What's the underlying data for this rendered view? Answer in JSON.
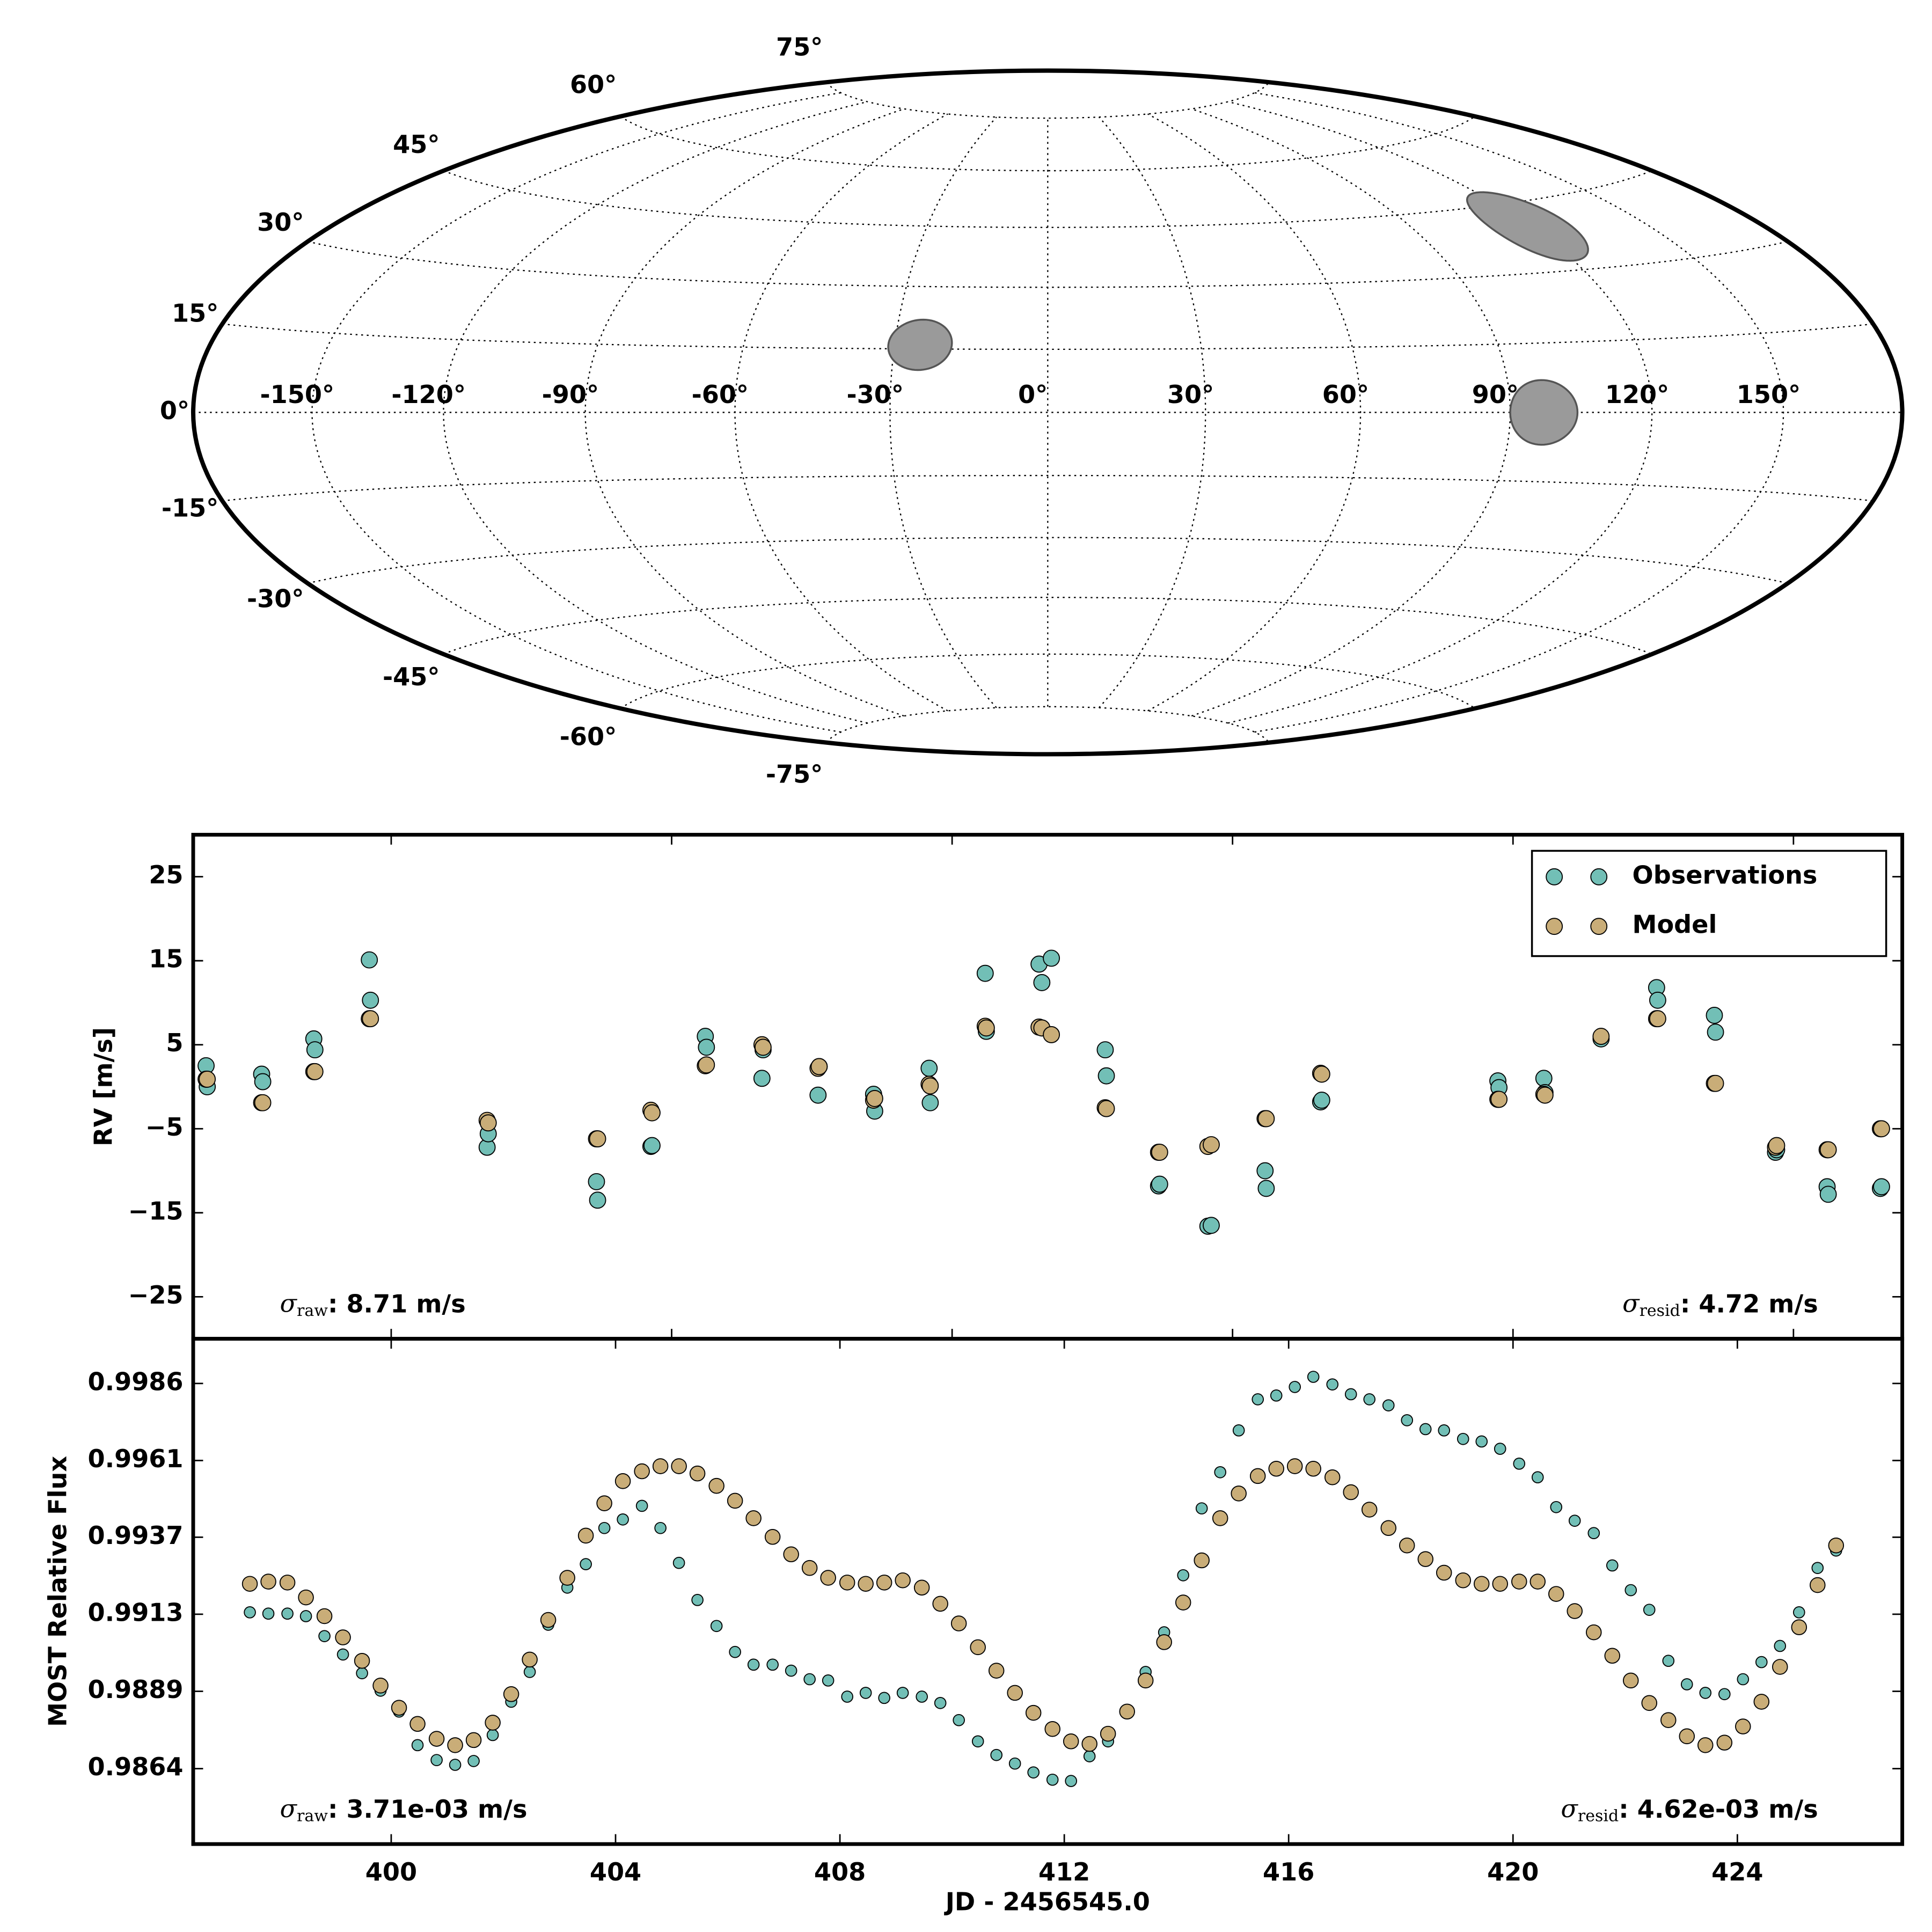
{
  "chart_data": [
    {
      "type": "map",
      "projection": "hammer",
      "lat_ticks": [
        {
          "value": -75,
          "label": "-75°"
        },
        {
          "value": -60,
          "label": "-60°"
        },
        {
          "value": -45,
          "label": "-45°"
        },
        {
          "value": -30,
          "label": "-30°"
        },
        {
          "value": -15,
          "label": "-15°"
        },
        {
          "value": 0,
          "label": "0°"
        },
        {
          "value": 15,
          "label": "15°"
        },
        {
          "value": 30,
          "label": "30°"
        },
        {
          "value": 45,
          "label": "45°"
        },
        {
          "value": 60,
          "label": "60°"
        },
        {
          "value": 75,
          "label": "75°"
        }
      ],
      "lon_ticks": [
        {
          "value": -150,
          "label": "-150°"
        },
        {
          "value": -120,
          "label": "-120°"
        },
        {
          "value": -90,
          "label": "-90°"
        },
        {
          "value": -60,
          "label": "-60°"
        },
        {
          "value": -30,
          "label": "-30°"
        },
        {
          "value": 0,
          "label": "0°"
        },
        {
          "value": 30,
          "label": "30°"
        },
        {
          "value": 60,
          "label": "60°"
        },
        {
          "value": 90,
          "label": "90°"
        },
        {
          "value": 120,
          "label": "120°"
        },
        {
          "value": 150,
          "label": "150°"
        }
      ],
      "spots": [
        {
          "lon": -25,
          "lat": 16,
          "radius": 6
        },
        {
          "lon": 97,
          "lat": 0,
          "radius": 7
        },
        {
          "lon": 120,
          "lat": 40,
          "radius": 8
        }
      ],
      "spot_color": "#9a9a9a"
    },
    {
      "type": "scatter",
      "ylabel": "RV [m/s]",
      "x": [
        396.7,
        396.72,
        397.69,
        397.71,
        398.62,
        398.64,
        399.61,
        399.63,
        401.71,
        401.73,
        403.66,
        403.68,
        404.63,
        404.65,
        405.6,
        405.62,
        406.61,
        406.63,
        407.61,
        407.63,
        408.6,
        408.62,
        409.59,
        409.61,
        410.59,
        410.61,
        411.55,
        411.6,
        411.77,
        412.73,
        412.75,
        413.68,
        413.7,
        414.56,
        414.62,
        415.58,
        415.6,
        416.57,
        416.59,
        419.73,
        419.75,
        420.55,
        420.57,
        421.57,
        422.56,
        422.58,
        423.59,
        423.61,
        424.68,
        424.7,
        425.6,
        425.62,
        426.55,
        426.57
      ],
      "series": [
        {
          "name": "Observations",
          "color": "#72bfb6",
          "values": [
            2.5,
            0.0,
            1.5,
            0.6,
            5.7,
            4.4,
            15.1,
            10.3,
            -7.2,
            -5.6,
            -11.3,
            -13.5,
            -7.1,
            -7.0,
            6.0,
            4.7,
            1.0,
            4.4,
            -1.0,
            2.4,
            -0.9,
            -2.9,
            2.2,
            -1.9,
            13.5,
            6.6,
            14.6,
            12.4,
            15.3,
            4.4,
            1.3,
            -11.8,
            -11.6,
            -16.6,
            -16.5,
            -10.0,
            -12.1,
            -1.8,
            -1.6,
            0.7,
            -0.1,
            1.0,
            -0.7,
            5.7,
            11.8,
            10.3,
            8.5,
            6.5,
            -7.8,
            -7.5,
            -11.9,
            -12.8,
            -12.1,
            -11.9
          ]
        },
        {
          "name": "Model",
          "color": "#c9ad78",
          "values": [
            0.9,
            0.9,
            -1.9,
            -1.9,
            1.8,
            1.8,
            8.1,
            8.1,
            -4.0,
            -4.3,
            -6.2,
            -6.2,
            -2.8,
            -3.1,
            2.5,
            2.6,
            5.0,
            4.7,
            2.2,
            2.4,
            -1.6,
            -1.4,
            0.3,
            0.1,
            7.2,
            7.0,
            7.1,
            7.0,
            6.2,
            -2.5,
            -2.6,
            -7.8,
            -7.8,
            -7.1,
            -6.9,
            -3.8,
            -3.8,
            1.6,
            1.5,
            -1.5,
            -1.5,
            -0.9,
            -1.0,
            6.0,
            8.1,
            8.1,
            0.4,
            0.4,
            -7.2,
            -7.0,
            -7.5,
            -7.5,
            -5.0,
            -5.0
          ]
        }
      ],
      "xlim": [
        396.47,
        426.94
      ],
      "xticks": [
        400,
        405,
        410,
        415,
        420,
        425
      ],
      "show_xticklabels": false,
      "ylim": [
        -30,
        30
      ],
      "yticks": [
        {
          "value": -25,
          "label": "−25"
        },
        {
          "value": -15,
          "label": "−15"
        },
        {
          "value": -5,
          "label": "−5"
        },
        5,
        15,
        25
      ],
      "legend": "upper right",
      "annotations": [
        {
          "symbol": "σ",
          "subscript": "raw",
          "text": ": 8.71 m/s",
          "loc": "lower left"
        },
        {
          "symbol": "σ",
          "subscript": "resid",
          "text": ": 4.72 m/s",
          "loc": "lower right"
        }
      ]
    },
    {
      "type": "scatter",
      "xlabel": "JD - 2456545.0",
      "ylabel": "MOST Relative Flux",
      "x": [
        397.48,
        397.81,
        398.15,
        398.48,
        398.81,
        399.14,
        399.48,
        399.81,
        400.14,
        400.47,
        400.81,
        401.14,
        401.47,
        401.81,
        402.14,
        402.47,
        402.8,
        403.14,
        403.47,
        403.8,
        404.13,
        404.47,
        404.8,
        405.13,
        405.46,
        405.8,
        406.13,
        406.46,
        406.8,
        407.13,
        407.46,
        407.79,
        408.13,
        408.46,
        408.79,
        409.12,
        409.46,
        409.79,
        410.12,
        410.46,
        410.79,
        411.12,
        411.45,
        411.79,
        412.12,
        412.45,
        412.78,
        413.12,
        413.45,
        413.78,
        414.12,
        414.45,
        414.78,
        415.11,
        415.45,
        415.78,
        416.11,
        416.44,
        416.78,
        417.11,
        417.44,
        417.78,
        418.11,
        418.44,
        418.77,
        419.11,
        419.44,
        419.77,
        420.11,
        420.44,
        420.77,
        421.1,
        421.44,
        421.77,
        422.1,
        422.43,
        422.77,
        423.1,
        423.43,
        423.77,
        424.1,
        424.43,
        424.76,
        425.1,
        425.43,
        425.76
      ],
      "series": [
        {
          "color": "#72bfb6",
          "values": [
            0.99135,
            0.99131,
            0.99131,
            0.99123,
            0.9906,
            0.99002,
            0.98943,
            0.98888,
            0.98822,
            0.98716,
            0.98669,
            0.98654,
            0.98666,
            0.98748,
            0.98853,
            0.98947,
            0.99096,
            0.99213,
            0.99287,
            0.99401,
            0.99428,
            0.99471,
            0.99401,
            0.99291,
            0.99174,
            0.99092,
            0.9901,
            0.9897,
            0.9897,
            0.98951,
            0.98924,
            0.9892,
            0.98869,
            0.98881,
            0.98865,
            0.98881,
            0.98869,
            0.98849,
            0.98795,
            0.98728,
            0.98685,
            0.98658,
            0.9863,
            0.98607,
            0.98603,
            0.98681,
            0.98728,
            0.98818,
            0.98947,
            0.99072,
            0.99252,
            0.99463,
            0.99577,
            0.99709,
            0.99807,
            0.99819,
            0.99846,
            0.99878,
            0.99854,
            0.99823,
            0.99807,
            0.99788,
            0.99741,
            0.99713,
            0.99709,
            0.99682,
            0.99674,
            0.99651,
            0.99604,
            0.99561,
            0.99467,
            0.99424,
            0.99385,
            0.99283,
            0.99205,
            0.99143,
            0.98982,
            0.98908,
            0.98881,
            0.98877,
            0.98924,
            0.98978,
            0.99029,
            0.99135,
            0.99275,
            0.9933
          ]
        },
        {
          "color": "#c9ad78",
          "values": [
            0.99225,
            0.99232,
            0.99229,
            0.99182,
            0.99123,
            0.99056,
            0.98982,
            0.98904,
            0.98834,
            0.98783,
            0.98736,
            0.98716,
            0.98732,
            0.98787,
            0.98877,
            0.98986,
            0.99111,
            0.99244,
            0.99377,
            0.99479,
            0.99549,
            0.9958,
            0.99596,
            0.99596,
            0.99573,
            0.99534,
            0.99487,
            0.99432,
            0.99373,
            0.99318,
            0.99275,
            0.99244,
            0.99229,
            0.99225,
            0.99229,
            0.99236,
            0.99213,
            0.99162,
            0.991,
            0.99025,
            0.98951,
            0.98881,
            0.98818,
            0.98767,
            0.98728,
            0.9872,
            0.98752,
            0.98822,
            0.9892,
            0.99041,
            0.99166,
            0.99299,
            0.99432,
            0.9951,
            0.99565,
            0.99588,
            0.99596,
            0.99588,
            0.99561,
            0.99514,
            0.99459,
            0.99401,
            0.99346,
            0.99303,
            0.9926,
            0.99236,
            0.99225,
            0.99225,
            0.99232,
            0.99232,
            0.99193,
            0.99139,
            0.99072,
            0.98998,
            0.9892,
            0.98849,
            0.98795,
            0.98744,
            0.98716,
            0.98724,
            0.98775,
            0.98853,
            0.98963,
            0.99088,
            0.99221,
            0.99346
          ]
        }
      ],
      "xlim": [
        396.47,
        426.94
      ],
      "xticks": [
        400,
        404,
        408,
        412,
        416,
        420,
        424
      ],
      "show_xticklabels": true,
      "ylim": [
        0.98404,
        0.99998
      ],
      "yticks": [
        {
          "value": 0.98642,
          "label": "0.9864"
        },
        {
          "value": 0.98886,
          "label": "0.9889"
        },
        {
          "value": 0.99129,
          "label": "0.9913"
        },
        {
          "value": 0.99372,
          "label": "0.9937"
        },
        {
          "value": 0.99614,
          "label": "0.9961"
        },
        {
          "value": 0.99857,
          "label": "0.9986"
        }
      ],
      "annotations": [
        {
          "symbol": "σ",
          "subscript": "raw",
          "text": ": 3.71e-03 m/s",
          "loc": "lower left"
        },
        {
          "symbol": "σ",
          "subscript": "resid",
          "text": ": 4.62e-03 m/s",
          "loc": "lower right"
        }
      ]
    }
  ]
}
